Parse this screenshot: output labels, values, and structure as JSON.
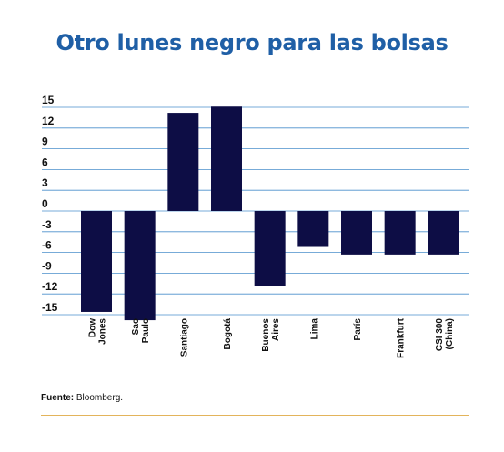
{
  "chart_data": {
    "type": "bar",
    "title": "Otro lunes negro para las bolsas",
    "categories": [
      "Dow Jones",
      "Sao Paulo",
      "Santiago",
      "Bogotá",
      "Buenos Aires",
      "Lima",
      "París",
      "Frankfurt",
      "CSI 300 (China)"
    ],
    "category_lines": [
      [
        "Dow",
        "Jones"
      ],
      [
        "Sao",
        "Paulo"
      ],
      [
        "Santiago"
      ],
      [
        "Bogotá"
      ],
      [
        "Buenos",
        "Aires"
      ],
      [
        "Lima"
      ],
      [
        "París"
      ],
      [
        "Frankfurt"
      ],
      [
        "CSI 300",
        "(China)"
      ]
    ],
    "values": [
      -14.6,
      -15.8,
      14.2,
      15.1,
      -10.8,
      -5.2,
      -6.3,
      -6.3,
      -6.3
    ],
    "yticks": [
      15,
      12,
      9,
      6,
      3,
      0,
      -3,
      -6,
      -9,
      -12,
      -15
    ],
    "ylim": [
      -16.5,
      16.5
    ],
    "grid": true,
    "bar_color": "#0d0d45",
    "grid_color": "#4a8fcc"
  },
  "source": {
    "label": "Fuente:",
    "text": "Bloomberg."
  }
}
